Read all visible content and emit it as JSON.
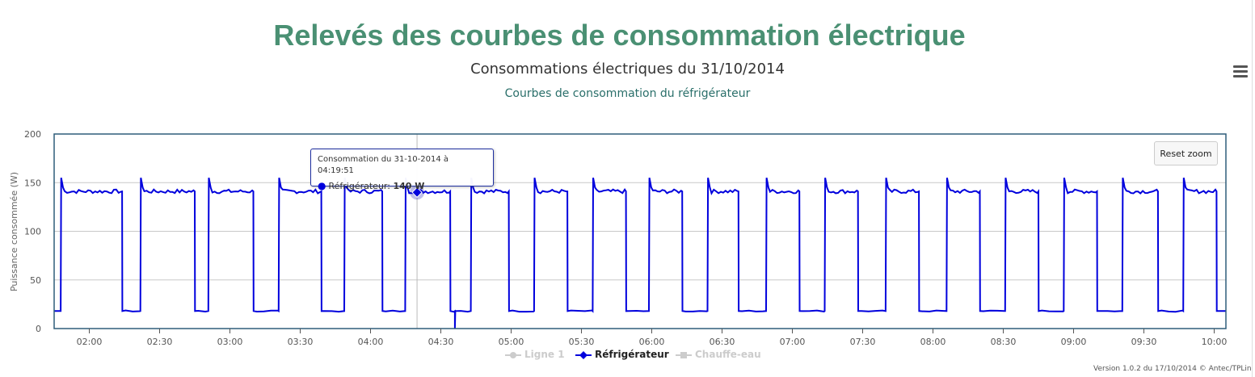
{
  "page": {
    "main_title": "Relevés des courbes de consommation électrique",
    "version": "Version 1.0.2 du 17/10/2014 © Antec/TPLin"
  },
  "toolbar": {
    "reset_zoom_label": "Reset zoom",
    "menu_icon": "hamburger-menu-icon"
  },
  "tooltip": {
    "header": "Consommation du 31-10-2014 à 04:19:51",
    "series_label": "Réfrigérateur:",
    "value": "140 W",
    "x": "04:19:51",
    "y": 140
  },
  "legend": {
    "items": [
      {
        "label": "Ligne 1",
        "visible": false
      },
      {
        "label": "Réfrigérateur",
        "visible": true
      },
      {
        "label": "Chauffe-eau",
        "visible": false
      }
    ]
  },
  "colors": {
    "title": "#4a9073",
    "subtitle": "#2a6f6a",
    "series": "#0000dd",
    "plot_border": "#2f5d7a"
  },
  "chart_data": {
    "type": "line",
    "title": "Consommations électriques du 31/10/2014",
    "subtitle": "Courbes de consommation du réfrigérateur",
    "xlabel": "",
    "ylabel": "Puissance consommée (W)",
    "ylim": [
      0,
      200
    ],
    "yticks": [
      0,
      50,
      100,
      150,
      200
    ],
    "xlim": [
      "01:45",
      "10:05"
    ],
    "xticks": [
      "02:00",
      "02:30",
      "03:00",
      "03:30",
      "04:00",
      "04:30",
      "05:00",
      "05:30",
      "06:00",
      "06:30",
      "07:00",
      "07:30",
      "08:00",
      "08:30",
      "09:00",
      "09:30",
      "10:00"
    ],
    "grid": true,
    "legend_position": "bottom-center",
    "series": [
      {
        "name": "Réfrigérateur",
        "base_value": 18,
        "on_value": 141,
        "peak_value": 155,
        "cycles": [
          {
            "on": "01:48",
            "off": "02:14"
          },
          {
            "on": "02:22",
            "off": "02:45"
          },
          {
            "on": "02:51",
            "off": "03:10"
          },
          {
            "on": "03:21",
            "off": "03:39"
          },
          {
            "on": "03:49",
            "off": "04:05"
          },
          {
            "on": "04:15",
            "off": "04:34"
          },
          {
            "on": "04:43",
            "off": "04:59"
          },
          {
            "on": "05:10",
            "off": "05:24"
          },
          {
            "on": "05:35",
            "off": "05:49"
          },
          {
            "on": "05:59",
            "off": "06:13"
          },
          {
            "on": "06:24",
            "off": "06:37"
          },
          {
            "on": "06:49",
            "off": "07:03"
          },
          {
            "on": "07:14",
            "off": "07:28"
          },
          {
            "on": "07:40",
            "off": "07:54"
          },
          {
            "on": "08:06",
            "off": "08:20"
          },
          {
            "on": "08:31",
            "off": "08:45"
          },
          {
            "on": "08:56",
            "off": "09:10"
          },
          {
            "on": "09:21",
            "off": "09:36"
          },
          {
            "on": "09:47",
            "off": "10:01"
          }
        ],
        "dips": [
          {
            "time": "04:36",
            "value": 0
          }
        ]
      }
    ]
  }
}
